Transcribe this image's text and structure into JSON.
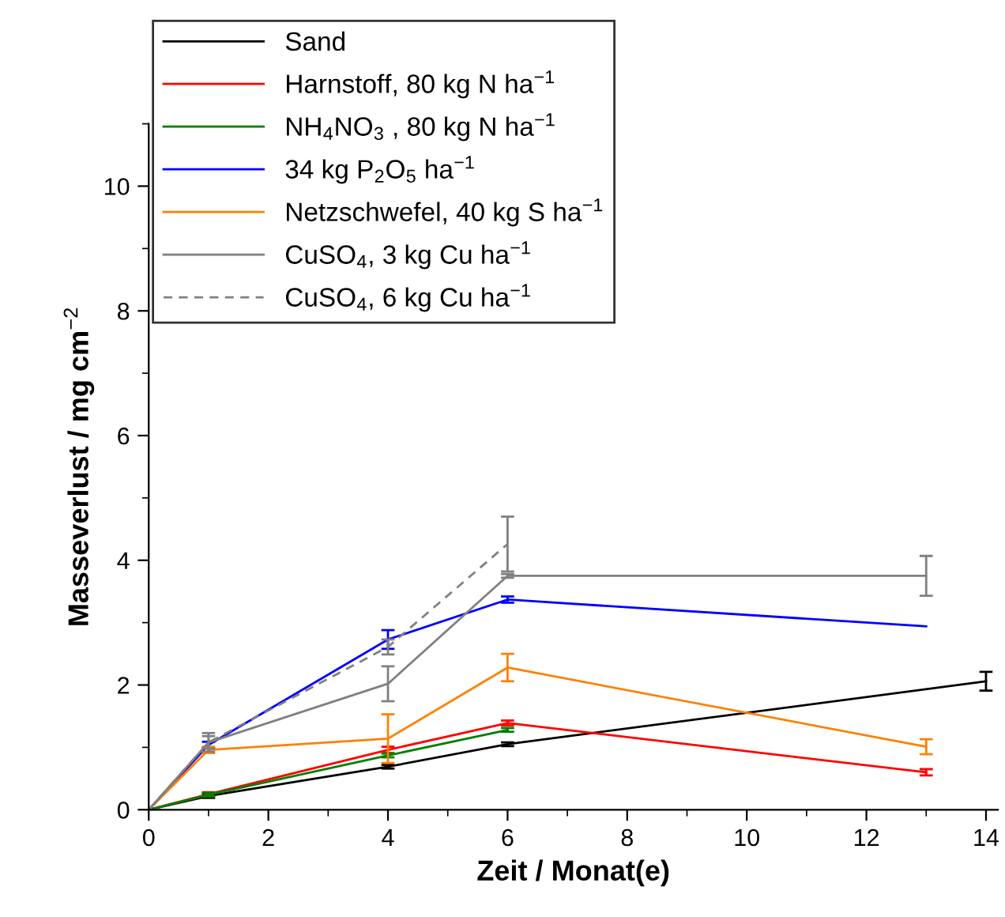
{
  "chart_data": {
    "type": "line",
    "xlabel": "Zeit / Monat(e)",
    "ylabel": "Masseverlust / mg cm$^{−2}$",
    "xlim": [
      0,
      14.2
    ],
    "ylim": [
      0,
      11
    ],
    "xticks": [
      0,
      2,
      4,
      6,
      8,
      10,
      12,
      14
    ],
    "yticks": [
      0,
      2,
      4,
      6,
      8,
      10
    ],
    "grid": false,
    "legend": "top left",
    "marker": "none",
    "series": [
      {
        "name": "Sand",
        "color": "#000000",
        "x": [
          0,
          1,
          4,
          6,
          14
        ],
        "values": [
          0,
          0.22,
          0.69,
          1.05,
          2.06
        ],
        "errors": [
          null,
          0.03,
          0.03,
          0.03,
          0.15
        ]
      },
      {
        "name": "Harnstoff, 80 kg N ha$^{−1}$",
        "color": "#ff0000",
        "x": [
          0,
          1,
          4,
          6,
          13
        ],
        "values": [
          0,
          0.25,
          0.96,
          1.39,
          0.6
        ],
        "errors": [
          null,
          0.03,
          0.05,
          0.04,
          0.05
        ]
      },
      {
        "name": "NH$_{4}$NO$_{3}$ , 80 kg N ha$^{−1}$",
        "color": "#008000",
        "x": [
          0,
          1,
          4,
          6
        ],
        "values": [
          0,
          0.24,
          0.87,
          1.28
        ],
        "errors": [
          null,
          0.03,
          0.03,
          0.03
        ]
      },
      {
        "name": "34 kg P$_{2}$O$_{5}$ ha$^{−1}$",
        "color": "#0000ff",
        "x": [
          0,
          1,
          4,
          6,
          13
        ],
        "values": [
          0,
          1.04,
          2.73,
          3.37,
          2.94
        ],
        "errors": [
          null,
          0.05,
          0.15,
          0.05,
          null
        ]
      },
      {
        "name": "Netzschwefel, 40 kg S ha$^{−1}$",
        "color": "#ff8000",
        "x": [
          0,
          1,
          4,
          6,
          13
        ],
        "values": [
          0,
          0.96,
          1.14,
          2.28,
          1.01
        ],
        "errors": [
          null,
          0.05,
          0.39,
          0.22,
          0.12
        ]
      },
      {
        "name": "CuSO$_{4}$, 3 kg Cu ha$^{−1}$",
        "color": "#808080",
        "x": [
          0,
          1,
          4,
          6,
          13
        ],
        "values": [
          0,
          1.08,
          2.02,
          3.75,
          3.75
        ],
        "errors": [
          null,
          0.15,
          0.28,
          0.03,
          0.32
        ]
      },
      {
        "name": "CuSO$_{4}$, 6 kg Cu ha$^{−1}$",
        "color": "#808080",
        "line_style": "dashed",
        "x": [
          0,
          1,
          4,
          6
        ],
        "values": [
          0,
          1.08,
          2.61,
          4.26
        ],
        "errors": [
          null,
          0.1,
          0.12,
          0.44
        ]
      }
    ]
  }
}
